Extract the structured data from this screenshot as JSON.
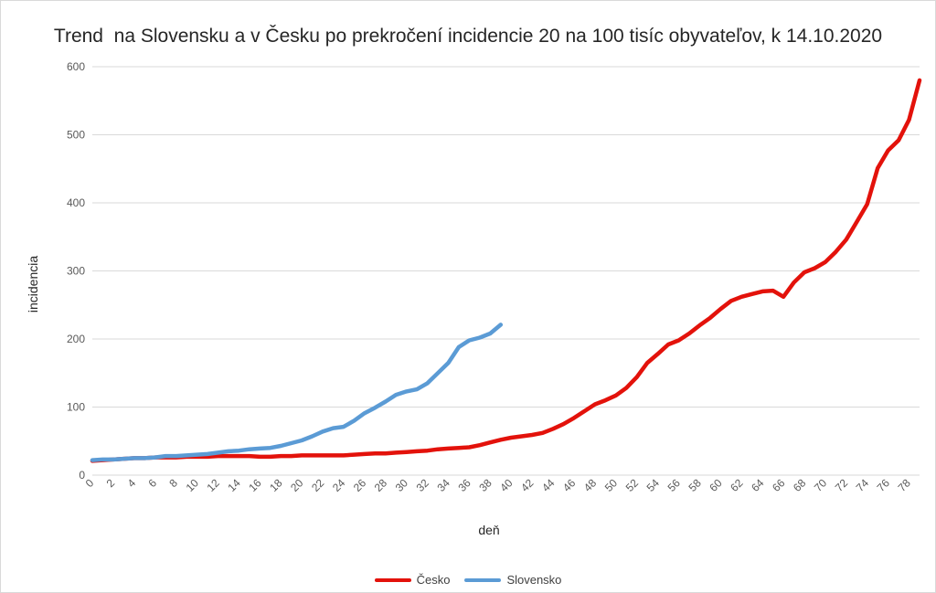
{
  "chart_data": {
    "type": "line",
    "title": "Trend  na Slovensku a v Česku po prekročení incidencie 20 na 100 tisíc obyvateľov, k 14.10.2020",
    "xlabel": "deň",
    "ylabel": "incidencia",
    "xlim": [
      0,
      79
    ],
    "ylim": [
      0,
      600
    ],
    "yticks": [
      0,
      100,
      200,
      300,
      400,
      500,
      600
    ],
    "xticks": [
      0,
      2,
      4,
      6,
      8,
      10,
      12,
      14,
      16,
      18,
      20,
      22,
      24,
      26,
      28,
      30,
      32,
      34,
      36,
      38,
      40,
      42,
      44,
      46,
      48,
      50,
      52,
      54,
      56,
      58,
      60,
      62,
      64,
      66,
      68,
      70,
      72,
      74,
      76,
      78
    ],
    "grid": true,
    "legend_position": "bottom",
    "series": [
      {
        "name": "Česko",
        "color": "#e3120b",
        "x": [
          0,
          1,
          2,
          3,
          4,
          5,
          6,
          7,
          8,
          9,
          10,
          11,
          12,
          13,
          14,
          15,
          16,
          17,
          18,
          19,
          20,
          21,
          22,
          23,
          24,
          25,
          26,
          27,
          28,
          29,
          30,
          31,
          32,
          33,
          34,
          35,
          36,
          37,
          38,
          39,
          40,
          41,
          42,
          43,
          44,
          45,
          46,
          47,
          48,
          49,
          50,
          51,
          52,
          53,
          54,
          55,
          56,
          57,
          58,
          59,
          60,
          61,
          62,
          63,
          64,
          65,
          66,
          67,
          68,
          69,
          70,
          71,
          72,
          73,
          74,
          75,
          76,
          77,
          78,
          79
        ],
        "values": [
          21,
          22,
          23,
          24,
          25,
          25,
          26,
          26,
          26,
          27,
          27,
          27,
          28,
          28,
          28,
          28,
          27,
          27,
          28,
          28,
          29,
          29,
          29,
          29,
          29,
          30,
          31,
          32,
          32,
          33,
          34,
          35,
          36,
          38,
          39,
          40,
          41,
          44,
          48,
          52,
          55,
          57,
          59,
          62,
          68,
          75,
          84,
          94,
          104,
          110,
          117,
          128,
          144,
          165,
          178,
          192,
          198,
          208,
          220,
          231,
          244,
          256,
          262,
          266,
          270,
          271,
          262,
          283,
          298,
          304,
          313,
          328,
          346,
          372,
          398,
          451,
          477,
          492,
          522,
          580
        ]
      },
      {
        "name": "Slovensko",
        "color": "#5b9bd5",
        "x": [
          0,
          1,
          2,
          3,
          4,
          5,
          6,
          7,
          8,
          9,
          10,
          11,
          12,
          13,
          14,
          15,
          16,
          17,
          18,
          19,
          20,
          21,
          22,
          23,
          24,
          25,
          26,
          27,
          28,
          29,
          30,
          31,
          32,
          33,
          34,
          35,
          36,
          37,
          38,
          39
        ],
        "values": [
          22,
          23,
          23,
          24,
          25,
          25,
          26,
          28,
          28,
          29,
          30,
          31,
          33,
          35,
          36,
          38,
          39,
          40,
          43,
          47,
          51,
          57,
          64,
          69,
          71,
          80,
          91,
          99,
          108,
          118,
          123,
          126,
          135,
          150,
          165,
          188,
          198,
          202,
          208,
          221
        ]
      }
    ]
  }
}
